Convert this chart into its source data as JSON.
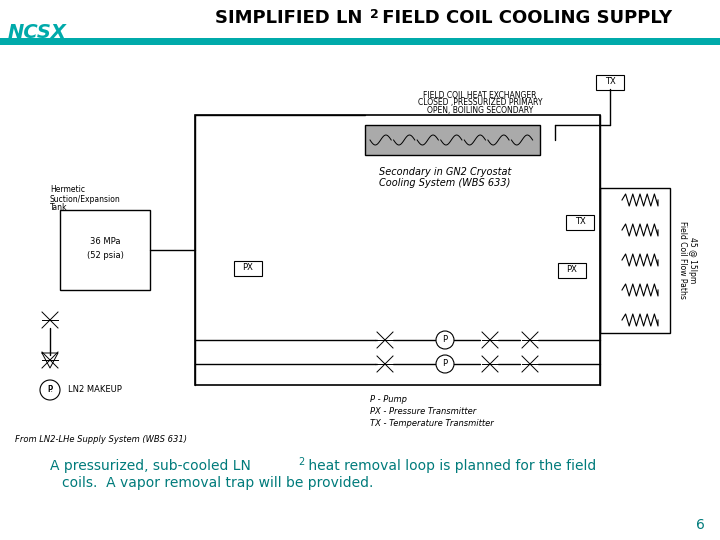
{
  "teal_color": "#00AAAA",
  "dark_teal": "#007B7B",
  "bg_color": "#FFFFFF",
  "black": "#000000",
  "slide_number": "6",
  "title1": "SIMPLIFIED LN",
  "title2": "2",
  "title3": " FIELD COIL COOLING SUPPLY",
  "ncsx_text": "NCSX",
  "label_hx1": "FIELD COIL HEAT EXCHANGER",
  "label_hx2": "CLOSED ,PRESSURIZED PRIMARY",
  "label_hx3": "OPEN, BOILING SECONDARY",
  "label_hermetic1": "Hermetic",
  "label_hermetic2": "Suction/Expansion",
  "label_hermetic3": "Tank",
  "label_pressure": "36 MPa",
  "label_psia": "(52 psia)",
  "label_ln2": "LN2 MAKEUP",
  "label_secondary1": "Secondary in GN2 Cryostat",
  "label_secondary2": "Cooling System (WBS 633)",
  "label_field_coil": "Field Coil Flow Paths",
  "label_flow_rate": "45 @ 15lpm",
  "legend_p": "P - Pump",
  "legend_px": "PX - Pressure Transmitter",
  "legend_tx": "TX - Temperature Transmitter",
  "caption_from": "From LN2-LHe Supply System (WBS 631)",
  "bottom_line1a": "A pressurized, sub-cooled LN",
  "bottom_line1b": "2",
  "bottom_line1c": " heat removal loop is planned for the field",
  "bottom_line2": "coils.  A vapor removal trap will be provided."
}
